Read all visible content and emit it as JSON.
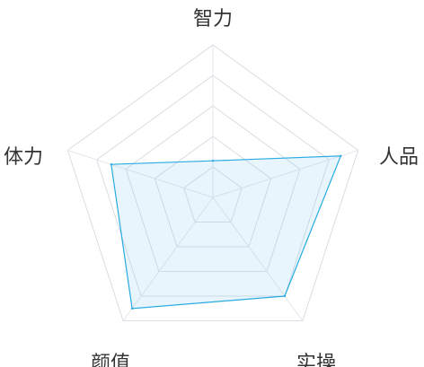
{
  "chart_data": {
    "type": "radar",
    "title": "",
    "axes": [
      "智力",
      "人品",
      "实操",
      "颜值",
      "体力"
    ],
    "max": 100,
    "grid_levels": 5,
    "series": [
      {
        "values": [
          24,
          88,
          80,
          90,
          70
        ]
      }
    ]
  },
  "colors": {
    "series_line": "#29abe2",
    "series_fill": "#7ec8ef",
    "grid": "#d9dde3",
    "label": "#333333"
  }
}
